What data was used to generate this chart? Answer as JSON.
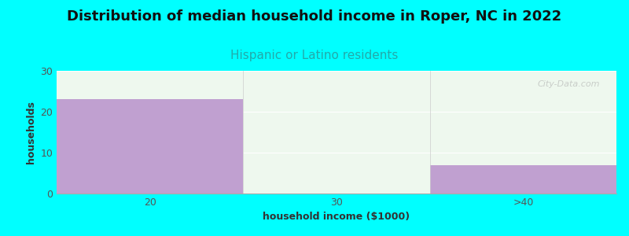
{
  "title": "Distribution of median household income in Roper, NC in 2022",
  "subtitle": "Hispanic or Latino residents",
  "subtitle_color": "#22aaaa",
  "xlabel": "household income ($1000)",
  "ylabel": "households",
  "categories": [
    "20",
    "30",
    ">40"
  ],
  "values": [
    23,
    0,
    7
  ],
  "bar_color": "#c0a0d0",
  "ylim": [
    0,
    30
  ],
  "yticks": [
    0,
    10,
    20,
    30
  ],
  "background_color": "#00ffff",
  "plot_bg_color": "#eef8ee",
  "title_fontsize": 13,
  "subtitle_fontsize": 11,
  "label_fontsize": 9,
  "watermark": "City-Data.com"
}
